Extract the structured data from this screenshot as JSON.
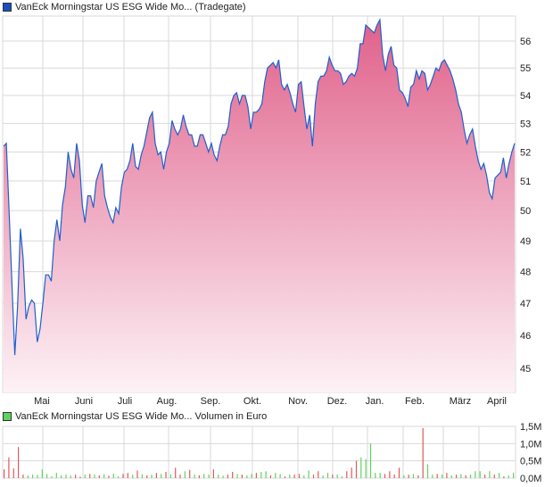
{
  "price_legend": {
    "label": "VanEck Morningstar US ESG Wide Mo... (Tradegate)",
    "color": "#1a4fc0"
  },
  "volume_legend": {
    "label": "VanEck Morningstar US ESG Wide Mo... Volumen in Euro",
    "color": "#5fd35f"
  },
  "colors": {
    "line": "#1f5fd0",
    "fill_top": "#e0608a",
    "fill_bottom": "#fdf2f6",
    "grid": "#d9d9d9",
    "volume_up": "#5fd35f",
    "volume_down": "#e05a5a"
  },
  "chart_data": [
    {
      "type": "area",
      "scale": "log",
      "ylim": [
        44.2,
        57.2
      ],
      "y_ticks": [
        "45",
        "46",
        "47",
        "48",
        "49",
        "50",
        "51",
        "52",
        "53",
        "54",
        "55",
        "56"
      ],
      "x_ticks": [
        "Mai",
        "Juni",
        "Juli",
        "Aug.",
        "Sep.",
        "Okt.",
        "Nov.",
        "Dez.",
        "Jan.",
        "Feb.",
        "März",
        "April"
      ],
      "grid": true,
      "values": [
        52.2,
        52.3,
        49.9,
        47.6,
        45.4,
        46.9,
        49.4,
        48.4,
        46.5,
        46.9,
        47.1,
        47.0,
        45.8,
        46.2,
        47.0,
        47.9,
        47.9,
        47.7,
        49.0,
        49.7,
        49.0,
        50.2,
        50.8,
        52.0,
        51.4,
        51.1,
        52.3,
        51.7,
        50.2,
        49.6,
        50.5,
        50.5,
        50.1,
        51.0,
        51.3,
        51.6,
        50.5,
        50.1,
        49.8,
        49.6,
        50.1,
        49.9,
        50.8,
        51.3,
        51.4,
        51.7,
        52.3,
        51.5,
        51.4,
        51.9,
        52.2,
        52.7,
        53.2,
        53.4,
        52.3,
        51.9,
        52.0,
        51.4,
        52.0,
        52.3,
        53.1,
        52.8,
        52.6,
        52.8,
        53.3,
        52.9,
        52.6,
        52.6,
        52.2,
        52.2,
        52.6,
        52.6,
        52.3,
        52.0,
        52.3,
        51.9,
        51.7,
        52.2,
        52.6,
        52.6,
        52.9,
        53.7,
        54.0,
        54.1,
        53.7,
        54.0,
        54.0,
        53.6,
        52.8,
        53.4,
        53.4,
        53.5,
        53.7,
        54.5,
        55.0,
        55.1,
        55.2,
        55.0,
        55.3,
        54.4,
        54.2,
        54.4,
        54.1,
        53.7,
        53.4,
        54.4,
        54.5,
        53.6,
        52.8,
        53.3,
        52.2,
        53.7,
        54.5,
        54.7,
        54.7,
        54.9,
        55.4,
        55.1,
        54.9,
        54.9,
        54.8,
        54.4,
        54.5,
        54.7,
        54.8,
        54.7,
        55.0,
        55.9,
        55.9,
        56.6,
        56.5,
        56.4,
        56.3,
        56.6,
        56.8,
        55.5,
        54.9,
        55.5,
        55.8,
        55.1,
        55.0,
        54.2,
        54.1,
        53.9,
        53.6,
        54.3,
        54.4,
        54.9,
        54.6,
        54.9,
        54.8,
        54.2,
        54.4,
        54.7,
        55.0,
        54.9,
        55.2,
        55.3,
        55.1,
        54.9,
        54.6,
        54.2,
        53.7,
        53.4,
        52.8,
        52.3,
        52.6,
        52.8,
        52.2,
        51.7,
        51.4,
        51.6,
        51.2,
        50.6,
        50.4,
        51.1,
        51.2,
        51.3,
        51.8,
        51.1,
        51.6,
        52.0,
        52.3
      ]
    },
    {
      "type": "bar",
      "ylim": [
        0,
        1.5
      ],
      "y_ticks": [
        "0,0M",
        "0,5M",
        "1,0M",
        "1,5M"
      ],
      "grid": true,
      "volumes_m": [
        [
          0.25,
          "down"
        ],
        [
          0.6,
          "down"
        ],
        [
          0.28,
          "down"
        ],
        [
          0.9,
          "down"
        ],
        [
          0.1,
          "down"
        ],
        [
          0.08,
          "up"
        ],
        [
          0.1,
          "up"
        ],
        [
          0.09,
          "up"
        ],
        [
          0.25,
          "up"
        ],
        [
          0.12,
          "up"
        ],
        [
          0.05,
          "up"
        ],
        [
          0.15,
          "up"
        ],
        [
          0.08,
          "up"
        ],
        [
          0.1,
          "up"
        ],
        [
          0.07,
          "up"
        ],
        [
          0.1,
          "down"
        ],
        [
          0.04,
          "down"
        ],
        [
          0.1,
          "up"
        ],
        [
          0.12,
          "down"
        ],
        [
          0.1,
          "up"
        ],
        [
          0.08,
          "down"
        ],
        [
          0.11,
          "up"
        ],
        [
          0.07,
          "down"
        ],
        [
          0.13,
          "up"
        ],
        [
          0.05,
          "up"
        ],
        [
          0.12,
          "down"
        ],
        [
          0.15,
          "down"
        ],
        [
          0.1,
          "up"
        ],
        [
          0.22,
          "down"
        ],
        [
          0.11,
          "up"
        ],
        [
          0.08,
          "down"
        ],
        [
          0.1,
          "up"
        ],
        [
          0.15,
          "down"
        ],
        [
          0.12,
          "up"
        ],
        [
          0.18,
          "down"
        ],
        [
          0.1,
          "up"
        ],
        [
          0.3,
          "down"
        ],
        [
          0.1,
          "down"
        ],
        [
          0.2,
          "up"
        ],
        [
          0.24,
          "down"
        ],
        [
          0.1,
          "up"
        ],
        [
          0.08,
          "down"
        ],
        [
          0.12,
          "up"
        ],
        [
          0.1,
          "up"
        ],
        [
          0.25,
          "down"
        ],
        [
          0.1,
          "up"
        ],
        [
          0.07,
          "up"
        ],
        [
          0.1,
          "down"
        ],
        [
          0.18,
          "down"
        ],
        [
          0.12,
          "up"
        ],
        [
          0.1,
          "down"
        ],
        [
          0.08,
          "up"
        ],
        [
          0.12,
          "up"
        ],
        [
          0.15,
          "down"
        ],
        [
          0.18,
          "up"
        ],
        [
          0.2,
          "up"
        ],
        [
          0.08,
          "down"
        ],
        [
          0.15,
          "up"
        ],
        [
          0.12,
          "up"
        ],
        [
          0.05,
          "down"
        ],
        [
          0.1,
          "up"
        ],
        [
          0.1,
          "down"
        ],
        [
          0.12,
          "down"
        ],
        [
          0.08,
          "up"
        ],
        [
          0.22,
          "up"
        ],
        [
          0.1,
          "down"
        ],
        [
          0.2,
          "down"
        ],
        [
          0.08,
          "up"
        ],
        [
          0.15,
          "up"
        ],
        [
          0.1,
          "down"
        ],
        [
          0.1,
          "up"
        ],
        [
          0.05,
          "up"
        ],
        [
          0.2,
          "down"
        ],
        [
          0.3,
          "down"
        ],
        [
          0.5,
          "down"
        ],
        [
          0.6,
          "up"
        ],
        [
          0.55,
          "up"
        ],
        [
          1.0,
          "up"
        ],
        [
          0.15,
          "up"
        ],
        [
          0.15,
          "up"
        ],
        [
          0.12,
          "down"
        ],
        [
          0.2,
          "down"
        ],
        [
          0.1,
          "down"
        ],
        [
          0.3,
          "down"
        ],
        [
          0.08,
          "up"
        ],
        [
          0.1,
          "down"
        ],
        [
          0.12,
          "up"
        ],
        [
          0.08,
          "down"
        ],
        [
          1.45,
          "down"
        ],
        [
          0.4,
          "up"
        ],
        [
          0.1,
          "up"
        ],
        [
          0.12,
          "down"
        ],
        [
          0.1,
          "up"
        ],
        [
          0.15,
          "down"
        ],
        [
          0.08,
          "up"
        ],
        [
          0.1,
          "down"
        ],
        [
          0.12,
          "up"
        ],
        [
          0.08,
          "down"
        ],
        [
          0.1,
          "up"
        ],
        [
          0.2,
          "up"
        ],
        [
          0.2,
          "up"
        ],
        [
          0.1,
          "down"
        ],
        [
          0.2,
          "up"
        ],
        [
          0.1,
          "down"
        ],
        [
          0.15,
          "up"
        ],
        [
          0.05,
          "down"
        ],
        [
          0.08,
          "up"
        ],
        [
          0.15,
          "up"
        ]
      ]
    }
  ]
}
